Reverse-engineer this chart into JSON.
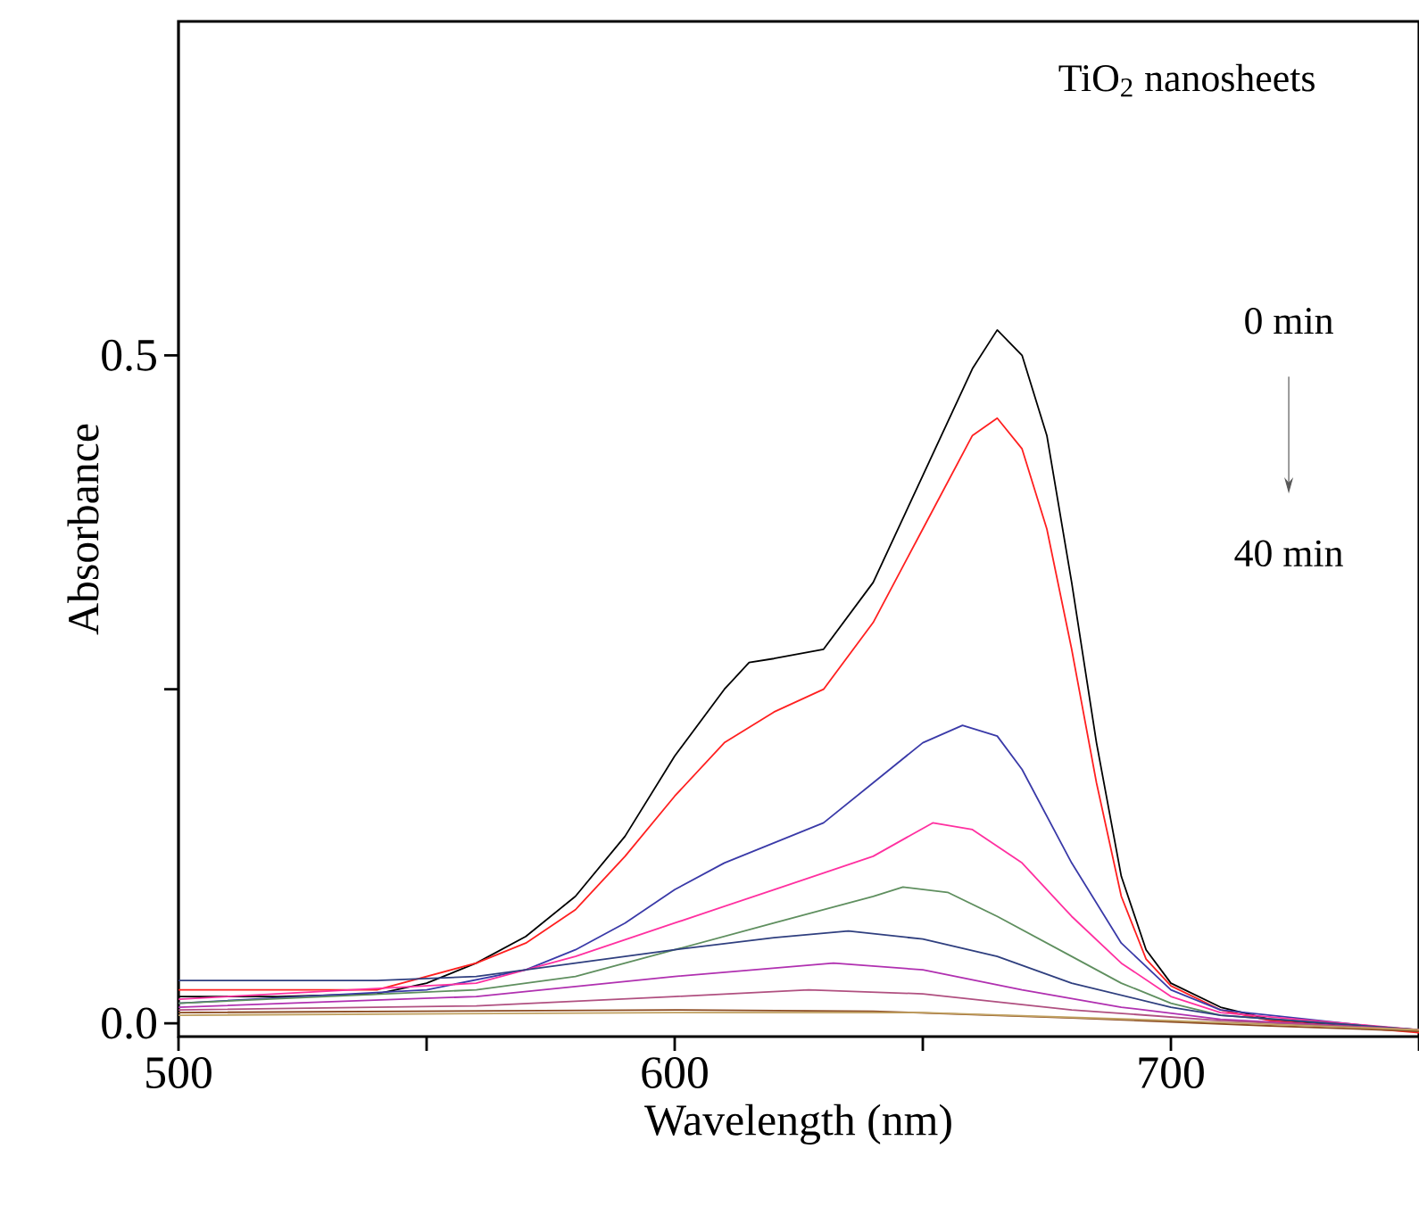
{
  "chart_data": {
    "type": "line",
    "xlabel": "Wavelength (nm)",
    "ylabel": "Absorbance",
    "annotations": [
      "TiO$_{2}$ nanosheets",
      "0 min",
      "40 min"
    ],
    "xlim": [
      500,
      750
    ],
    "ylim": [
      -0.01,
      0.75
    ],
    "xticks": [
      500,
      {
        "value": 550,
        "label": null
      },
      600,
      {
        "value": 650,
        "label": null
      },
      700,
      {
        "value": 750,
        "label": null
      }
    ],
    "yticks": [
      {
        "value": 0,
        "label": "0.0"
      },
      {
        "value": 0.25,
        "label": null
      },
      0.5
    ],
    "line_style": "solid",
    "series": [
      {
        "color": "#000000",
        "x": [
          500,
          520,
          540,
          550,
          560,
          570,
          580,
          590,
          600,
          610,
          615,
          620,
          630,
          640,
          650,
          660,
          665,
          670,
          675,
          680,
          685,
          690,
          695,
          700,
          710,
          720,
          735,
          750
        ],
        "values": [
          0.02,
          0.02,
          0.022,
          0.03,
          0.045,
          0.065,
          0.095,
          0.14,
          0.2,
          0.25,
          0.27,
          0.273,
          0.28,
          0.33,
          0.41,
          0.49,
          0.519,
          0.5,
          0.44,
          0.33,
          0.21,
          0.11,
          0.055,
          0.03,
          0.012,
          0.003,
          -0.002,
          -0.006
        ]
      },
      {
        "color": "#ff2020",
        "x": [
          500,
          540,
          560,
          570,
          580,
          590,
          600,
          610,
          620,
          630,
          640,
          650,
          660,
          665,
          670,
          675,
          680,
          685,
          690,
          695,
          700,
          710,
          720,
          750
        ],
        "values": [
          0.025,
          0.025,
          0.045,
          0.06,
          0.085,
          0.125,
          0.17,
          0.21,
          0.233,
          0.25,
          0.3,
          0.37,
          0.44,
          0.453,
          0.43,
          0.37,
          0.28,
          0.18,
          0.095,
          0.048,
          0.028,
          0.01,
          0.002,
          -0.007
        ]
      },
      {
        "color": "#3a3aa8",
        "x": [
          500,
          550,
          570,
          580,
          590,
          600,
          610,
          620,
          630,
          640,
          650,
          658,
          665,
          670,
          680,
          690,
          700,
          710,
          750
        ],
        "values": [
          0.015,
          0.025,
          0.04,
          0.055,
          0.075,
          0.1,
          0.12,
          0.135,
          0.15,
          0.18,
          0.21,
          0.223,
          0.215,
          0.19,
          0.12,
          0.06,
          0.025,
          0.01,
          -0.006
        ]
      },
      {
        "color": "#ff30a0",
        "x": [
          500,
          560,
          580,
          600,
          620,
          640,
          652,
          660,
          670,
          680,
          690,
          700,
          710,
          750
        ],
        "values": [
          0.018,
          0.03,
          0.05,
          0.075,
          0.1,
          0.125,
          0.15,
          0.145,
          0.12,
          0.08,
          0.045,
          0.02,
          0.008,
          -0.005
        ]
      },
      {
        "color": "#5f8f5f",
        "x": [
          500,
          560,
          580,
          600,
          620,
          640,
          646,
          655,
          665,
          680,
          690,
          700,
          710,
          750
        ],
        "values": [
          0.015,
          0.025,
          0.035,
          0.055,
          0.075,
          0.095,
          0.102,
          0.098,
          0.08,
          0.05,
          0.03,
          0.015,
          0.006,
          -0.005
        ]
      },
      {
        "color": "#2f3f7f",
        "x": [
          500,
          540,
          560,
          580,
          600,
          620,
          635,
          650,
          665,
          680,
          700,
          710,
          750
        ],
        "values": [
          0.032,
          0.032,
          0.035,
          0.045,
          0.055,
          0.064,
          0.069,
          0.063,
          0.05,
          0.03,
          0.012,
          0.006,
          -0.005
        ]
      },
      {
        "color": "#b030b0",
        "x": [
          500,
          560,
          600,
          632,
          650,
          670,
          690,
          710,
          750
        ],
        "values": [
          0.012,
          0.02,
          0.035,
          0.045,
          0.04,
          0.025,
          0.012,
          0.003,
          -0.005
        ]
      },
      {
        "color": "#b05080",
        "x": [
          500,
          560,
          600,
          627,
          650,
          680,
          710,
          750
        ],
        "values": [
          0.01,
          0.013,
          0.02,
          0.025,
          0.022,
          0.01,
          0.002,
          -0.005
        ]
      },
      {
        "color": "#8b4a20",
        "x": [
          500,
          600,
          640,
          680,
          720,
          750
        ],
        "values": [
          0.008,
          0.01,
          0.009,
          0.004,
          -0.002,
          -0.006
        ]
      },
      {
        "color": "#c0a060",
        "x": [
          500,
          600,
          650,
          700,
          750
        ],
        "values": [
          0.006,
          0.008,
          0.008,
          0.002,
          -0.005
        ]
      }
    ]
  }
}
